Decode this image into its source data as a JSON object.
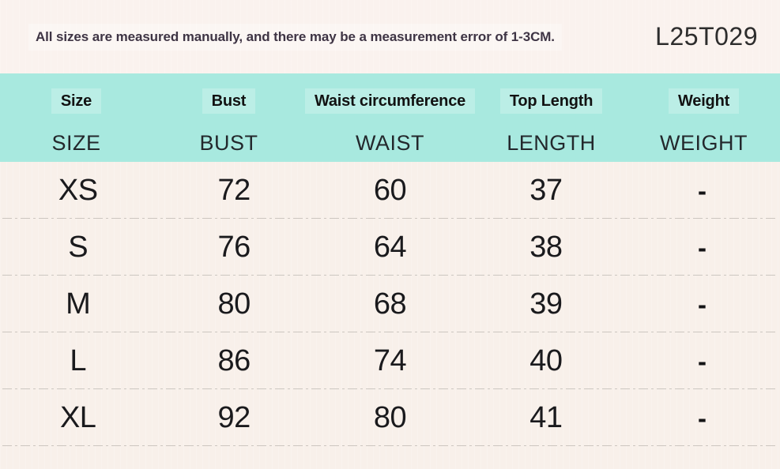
{
  "header": {
    "disclaimer": "All sizes are measured manually, and there may be a measurement error of 1-3CM.",
    "product_code": "L25T029"
  },
  "chart_data": {
    "type": "table",
    "columns": [
      {
        "label": "Size",
        "sublabel": "SIZE"
      },
      {
        "label": "Bust",
        "sublabel": "BUST"
      },
      {
        "label": "Waist circumference",
        "sublabel": "WAIST"
      },
      {
        "label": "Top Length",
        "sublabel": "LENGTH"
      },
      {
        "label": "Weight",
        "sublabel": "WEIGHT"
      }
    ],
    "rows": [
      {
        "size": "XS",
        "bust": "72",
        "waist": "60",
        "length": "37",
        "weight": "-"
      },
      {
        "size": "S",
        "bust": "76",
        "waist": "64",
        "length": "38",
        "weight": "-"
      },
      {
        "size": "M",
        "bust": "80",
        "waist": "68",
        "length": "39",
        "weight": "-"
      },
      {
        "size": "L",
        "bust": "86",
        "waist": "74",
        "length": "40",
        "weight": "-"
      },
      {
        "size": "XL",
        "bust": "92",
        "waist": "80",
        "length": "41",
        "weight": "-"
      }
    ]
  },
  "colors": {
    "header_bg": "#a8e9df",
    "top_band_bg": "#faf2ee",
    "body_bg": "#f8f0ea",
    "divider": "#ccc6c0",
    "table_text": "#1a1a1d",
    "disclaimer_text": "#3e3444"
  }
}
